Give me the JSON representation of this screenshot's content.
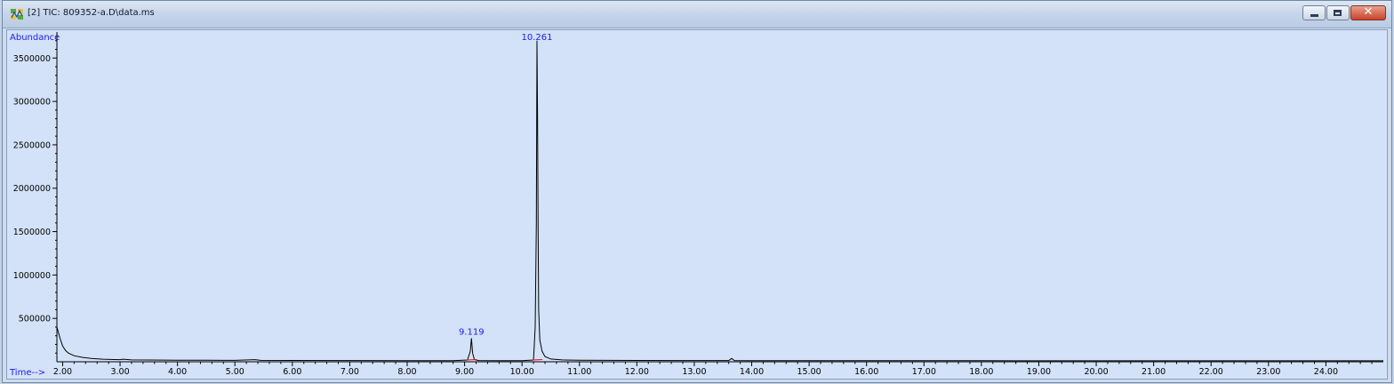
{
  "window": {
    "title": "[2] TIC: 809352-a.D\\data.ms",
    "icon": "chromatogram-app-icon",
    "controls": {
      "minimize": "minimize-icon",
      "maximize": "maximize-icon",
      "close": "close-icon"
    }
  },
  "colors": {
    "plot_bg": "#d3e2f9",
    "trace": "#000000",
    "labels": "#1a1aff",
    "integration": "#ff0000"
  },
  "chart_data": {
    "type": "line",
    "title": "",
    "xlabel": "Time-->",
    "ylabel": "Abundance",
    "xlim": [
      1.9,
      25.0
    ],
    "ylim": [
      0,
      3800000
    ],
    "grid": false,
    "x_ticks": [
      2.0,
      3.0,
      4.0,
      5.0,
      6.0,
      7.0,
      8.0,
      9.0,
      10.0,
      11.0,
      12.0,
      13.0,
      14.0,
      15.0,
      16.0,
      17.0,
      18.0,
      19.0,
      20.0,
      21.0,
      22.0,
      23.0,
      24.0
    ],
    "x_tick_labels": [
      "2.00",
      "3.00",
      "4.00",
      "5.00",
      "6.00",
      "7.00",
      "8.00",
      "9.00",
      "10.00",
      "11.00",
      "12.00",
      "13.00",
      "14.00",
      "15.00",
      "16.00",
      "17.00",
      "18.00",
      "19.00",
      "20.00",
      "21.00",
      "22.00",
      "23.00",
      "24.00"
    ],
    "y_ticks": [
      500000,
      1000000,
      1500000,
      2000000,
      2500000,
      3000000,
      3500000
    ],
    "y_tick_labels": [
      "500000",
      "1000000",
      "1500000",
      "2000000",
      "2500000",
      "3000000",
      "3500000"
    ],
    "series": [
      {
        "x": [
          1.9,
          1.93,
          1.96,
          2.0,
          2.05,
          2.1,
          2.2,
          2.35,
          2.5,
          2.7,
          2.9,
          3.0,
          3.05,
          3.2,
          3.5,
          4.0,
          4.5,
          5.0,
          5.35,
          5.45,
          6.0,
          7.0,
          8.0,
          8.8,
          9.05,
          9.1,
          9.119,
          9.14,
          9.17,
          9.25,
          9.6,
          10.0,
          10.2,
          10.23,
          10.25,
          10.261,
          10.27,
          10.28,
          10.29,
          10.31,
          10.35,
          10.4,
          10.5,
          10.7,
          11.0,
          12.0,
          13.0,
          13.6,
          13.65,
          13.7,
          14.0,
          15.0,
          16.0,
          18.0,
          20.0,
          22.0,
          24.0,
          25.0
        ],
        "y": [
          400000,
          330000,
          260000,
          180000,
          130000,
          100000,
          70000,
          50000,
          38000,
          30000,
          26000,
          25000,
          30000,
          22000,
          20000,
          18000,
          17000,
          16000,
          25000,
          16000,
          15000,
          14000,
          13000,
          13000,
          20000,
          120000,
          270000,
          100000,
          25000,
          14000,
          13000,
          13000,
          20000,
          400000,
          1600000,
          3700000,
          2900000,
          1500000,
          600000,
          250000,
          120000,
          60000,
          32000,
          22000,
          18000,
          15000,
          14000,
          14000,
          38000,
          14000,
          13000,
          12000,
          12000,
          12000,
          11000,
          11000,
          11000,
          11000
        ]
      }
    ],
    "annotations": [
      {
        "x": 10.261,
        "label": "10.261"
      },
      {
        "x": 9.119,
        "label": "9.119"
      }
    ]
  }
}
